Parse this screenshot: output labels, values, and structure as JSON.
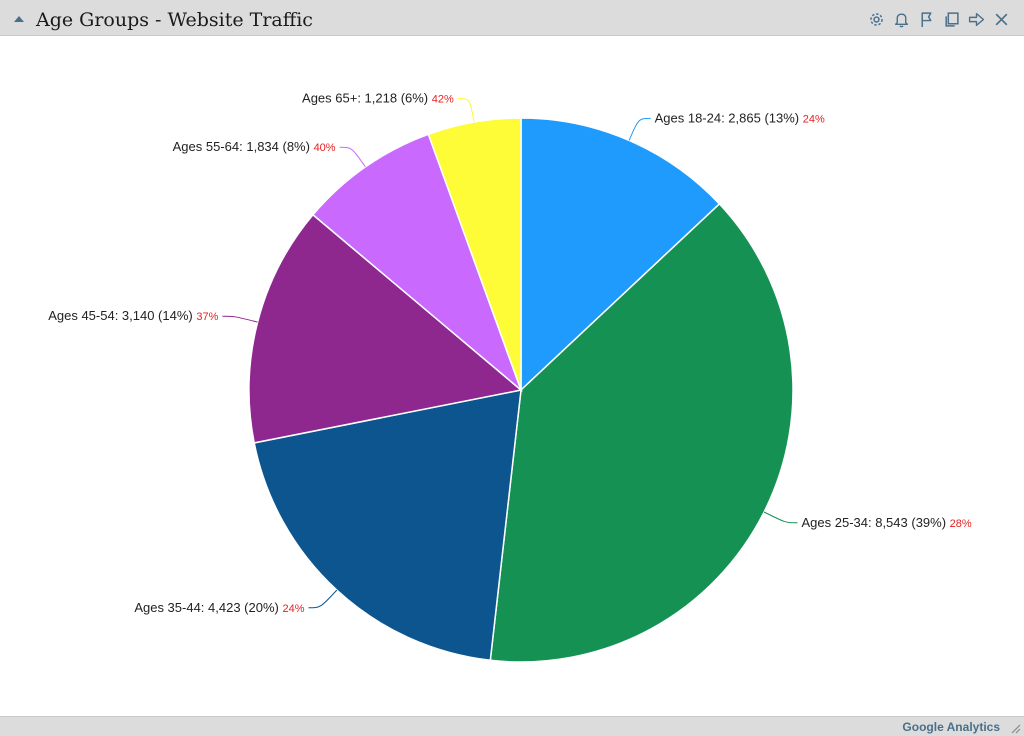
{
  "window": {
    "title": "Age Groups - Website Traffic",
    "footer_brand": "Google Analytics",
    "tools": [
      "gear-icon",
      "bell-icon",
      "flag-icon",
      "copy-icon",
      "forward-icon",
      "close-icon"
    ]
  },
  "chart_data": {
    "type": "pie",
    "title": "Age Groups - Website Traffic",
    "slices": [
      {
        "label": "Ages 18-24",
        "value": 2865,
        "value_text": "2,865",
        "percent_text": "(13%)",
        "extra": "24%",
        "color": "#1e9bfc"
      },
      {
        "label": "Ages 25-34",
        "value": 8543,
        "value_text": "8,543",
        "percent_text": "(39%)",
        "extra": "28%",
        "color": "#159153"
      },
      {
        "label": "Ages 35-44",
        "value": 4423,
        "value_text": "4,423",
        "percent_text": "(20%)",
        "extra": "24%",
        "color": "#0c558f"
      },
      {
        "label": "Ages 45-54",
        "value": 3140,
        "value_text": "3,140",
        "percent_text": "(14%)",
        "extra": "37%",
        "color": "#8e278e"
      },
      {
        "label": "Ages 55-64",
        "value": 1834,
        "value_text": "1,834",
        "percent_text": "(8%)",
        "extra": "40%",
        "color": "#c969fd"
      },
      {
        "label": "Ages 65+",
        "value": 1218,
        "value_text": "1,218",
        "percent_text": "(6%)",
        "extra": "42%",
        "color": "#fefb37"
      }
    ],
    "extra_color": "#e82020"
  }
}
